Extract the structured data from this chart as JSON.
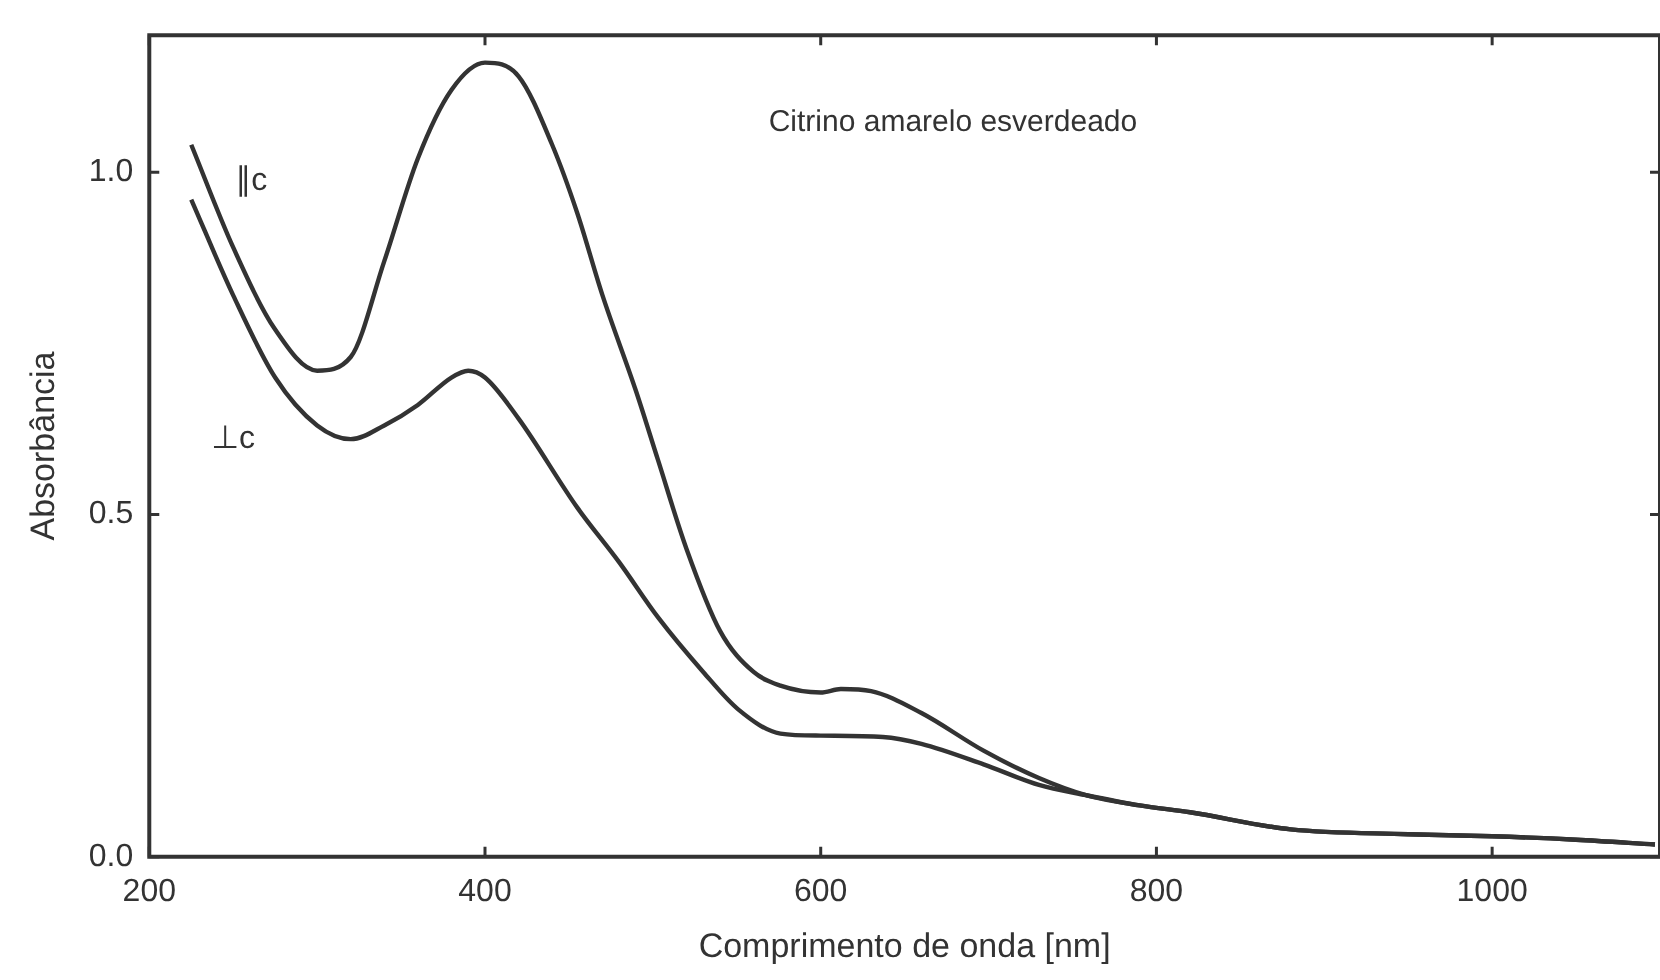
{
  "chart_data": {
    "type": "line",
    "xlabel": "Comprimento de onda [nm]",
    "ylabel": "Absorbância",
    "annotations": [
      "Citrino amarelo esverdeado"
    ],
    "xlim": [
      200,
      1100
    ],
    "xticks": [
      200,
      400,
      600,
      800,
      1000
    ],
    "ylim": [
      0,
      1.2
    ],
    "yticks": [
      {
        "value": 0,
        "label": "0.0"
      },
      0.5,
      {
        "value": 1,
        "label": "1.0"
      }
    ],
    "grid": false,
    "legend": false,
    "marker": "none",
    "line_style": "solid",
    "series": [
      {
        "name": "∥c",
        "color": "#333333",
        "x": [
          225,
          250,
          275,
          300,
          320,
          340,
          360,
          380,
          400,
          420,
          440,
          455,
          470,
          490,
          503,
          520,
          540,
          560,
          576,
          600,
          612,
          630,
          660,
          697,
          730,
          758,
          790,
          820,
          880,
          950,
          1000,
          1050,
          1097
        ],
        "values": [
          1.04,
          0.89,
          0.77,
          0.71,
          0.73,
          0.87,
          1.02,
          1.12,
          1.16,
          1.14,
          1.04,
          0.94,
          0.82,
          0.68,
          0.58,
          0.45,
          0.33,
          0.27,
          0.25,
          0.24,
          0.245,
          0.242,
          0.21,
          0.155,
          0.115,
          0.09,
          0.075,
          0.065,
          0.04,
          0.033,
          0.03,
          0.025,
          0.018
        ]
      },
      {
        "name": "⊥c",
        "color": "#333333",
        "x": [
          225,
          250,
          275,
          300,
          320,
          340,
          360,
          380,
          390,
          400,
          420,
          455,
          480,
          503,
          530,
          551,
          576,
          600,
          637,
          660,
          697,
          730,
          758,
          790,
          820,
          880,
          950,
          1000,
          1050,
          1097
        ],
        "values": [
          0.96,
          0.82,
          0.7,
          0.63,
          0.61,
          0.63,
          0.66,
          0.7,
          0.71,
          0.7,
          0.64,
          0.51,
          0.43,
          0.35,
          0.27,
          0.215,
          0.18,
          0.177,
          0.175,
          0.165,
          0.135,
          0.105,
          0.09,
          0.075,
          0.065,
          0.04,
          0.033,
          0.03,
          0.025,
          0.018
        ]
      }
    ]
  }
}
